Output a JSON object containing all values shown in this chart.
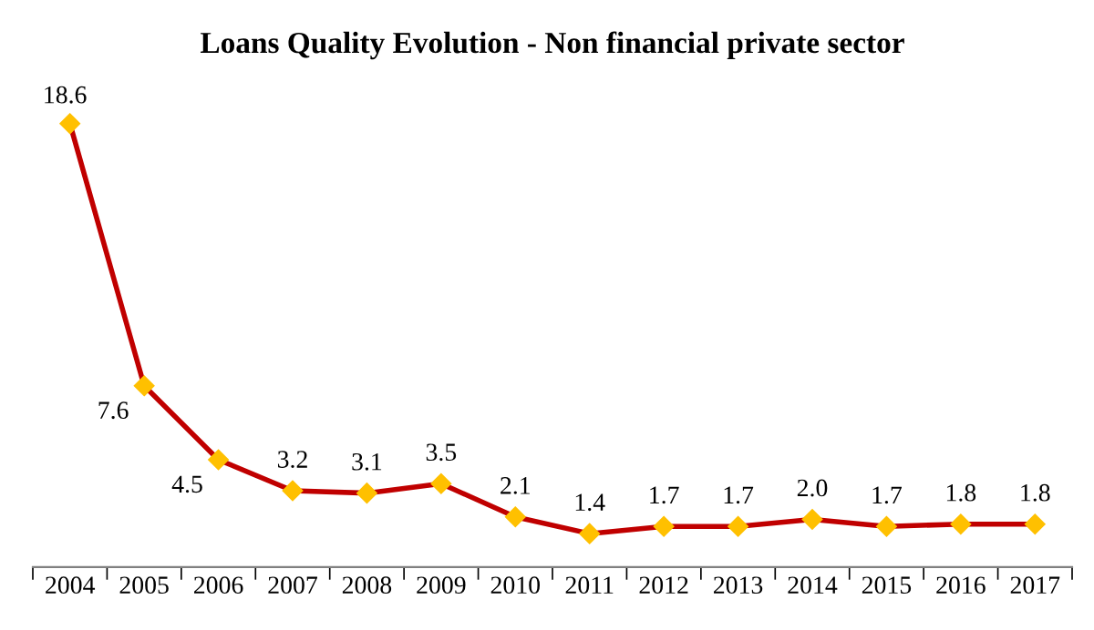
{
  "chart_data": {
    "type": "line",
    "title": "Loans Quality Evolution - Non financial private sector",
    "categories": [
      "2004",
      "2005",
      "2006",
      "2007",
      "2008",
      "2009",
      "2010",
      "2011",
      "2012",
      "2013",
      "2014",
      "2015",
      "2016",
      "2017"
    ],
    "series": [
      {
        "color": "#c00000",
        "values": [
          18.6,
          7.6,
          4.5,
          3.2,
          3.1,
          3.5,
          2.1,
          1.4,
          1.7,
          1.7,
          2.0,
          1.7,
          1.8,
          1.8
        ],
        "value_labels": [
          "18.6",
          "7.6",
          "4.5",
          "3.2",
          "3.1",
          "3.5",
          "2.1",
          "1.4",
          "1.7",
          "1.7",
          "2.0",
          "1.7",
          "1.8",
          "1.8"
        ]
      }
    ],
    "marker": "diamond",
    "tick_labels": "x",
    "grid": false,
    "legend": false
  }
}
